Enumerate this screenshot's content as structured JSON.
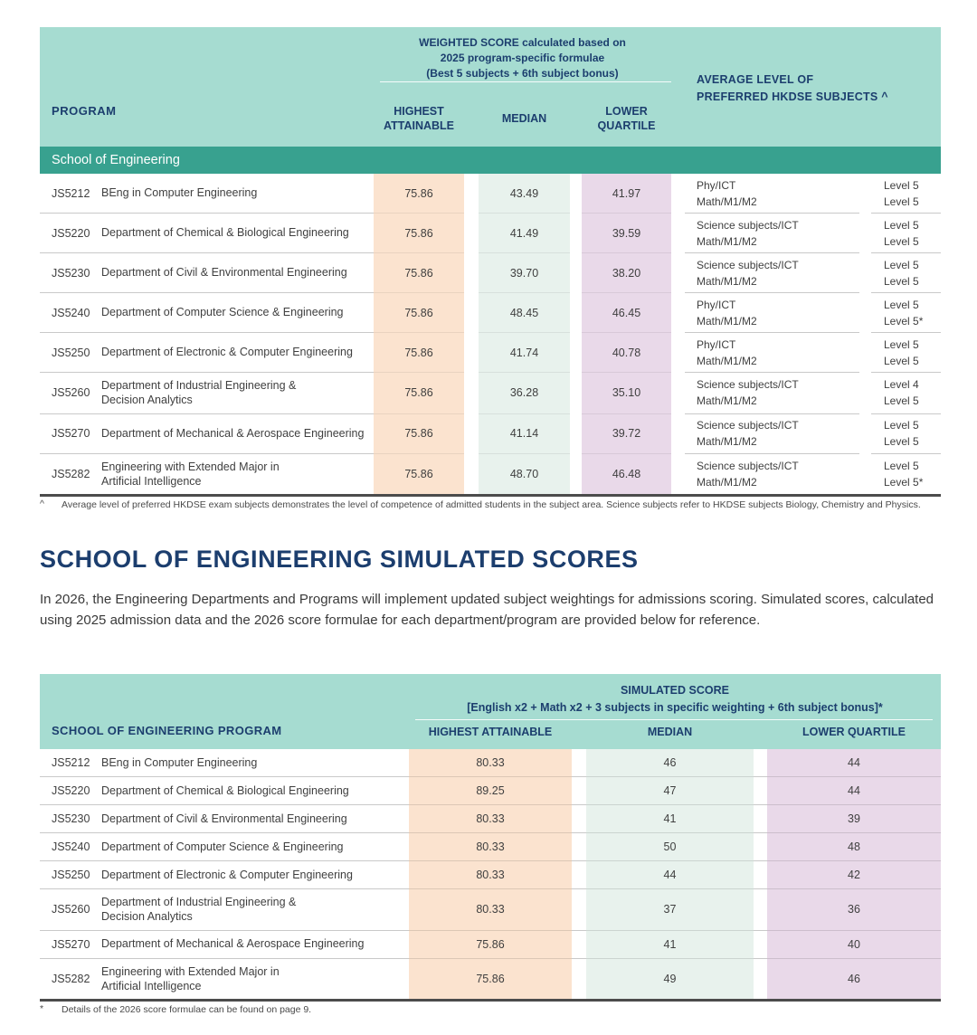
{
  "colors": {
    "header_bg": "#a6dcd1",
    "band_bg": "#38a18f",
    "navy": "#1c3e6e",
    "peach": "#fbe3cf",
    "mint": "#e8f2ed",
    "lavender": "#e9d9e9",
    "text": "#3f3f3f",
    "divider": "#c9c9c9",
    "table_bottom": "#4c4c4c"
  },
  "table1": {
    "program_header": "PROGRAM",
    "weighted_header_lines": [
      "WEIGHTED SCORE calculated based on",
      "2025 program-specific formulae",
      "(Best 5 subjects + 6th subject bonus)"
    ],
    "columns": {
      "highest_lines": [
        "HIGHEST",
        "ATTAINABLE"
      ],
      "median": "MEDIAN",
      "lower_lines": [
        "LOWER",
        "QUARTILE"
      ]
    },
    "avg_level_header_lines": [
      "AVERAGE LEVEL OF",
      "PREFERRED HKDSE SUBJECTS ^"
    ],
    "section_label": "School of Engineering",
    "rows": [
      {
        "code": "JS5212",
        "name_lines": [
          "BEng in Computer Engineering"
        ],
        "highest": "75.86",
        "median": "43.49",
        "lower": "41.97",
        "subjects": [
          "Phy/ICT",
          "Math/M1/M2"
        ],
        "levels": [
          "Level 5",
          "Level 5"
        ]
      },
      {
        "code": "JS5220",
        "name_lines": [
          "Department of Chemical & Biological Engineering"
        ],
        "highest": "75.86",
        "median": "41.49",
        "lower": "39.59",
        "subjects": [
          "Science subjects/ICT",
          "Math/M1/M2"
        ],
        "levels": [
          "Level 5",
          "Level 5"
        ]
      },
      {
        "code": "JS5230",
        "name_lines": [
          "Department of Civil & Environmental Engineering"
        ],
        "highest": "75.86",
        "median": "39.70",
        "lower": "38.20",
        "subjects": [
          "Science subjects/ICT",
          "Math/M1/M2"
        ],
        "levels": [
          "Level 5",
          "Level 5"
        ]
      },
      {
        "code": "JS5240",
        "name_lines": [
          "Department of Computer Science & Engineering"
        ],
        "highest": "75.86",
        "median": "48.45",
        "lower": "46.45",
        "subjects": [
          "Phy/ICT",
          "Math/M1/M2"
        ],
        "levels": [
          "Level 5",
          "Level 5*"
        ]
      },
      {
        "code": "JS5250",
        "name_lines": [
          "Department of Electronic & Computer Engineering"
        ],
        "highest": "75.86",
        "median": "41.74",
        "lower": "40.78",
        "subjects": [
          "Phy/ICT",
          "Math/M1/M2"
        ],
        "levels": [
          "Level 5",
          "Level 5"
        ]
      },
      {
        "code": "JS5260",
        "name_lines": [
          "Department of Industrial Engineering &",
          "Decision Analytics"
        ],
        "highest": "75.86",
        "median": "36.28",
        "lower": "35.10",
        "subjects": [
          "Science subjects/ICT",
          "Math/M1/M2"
        ],
        "levels": [
          "Level 4",
          "Level 5"
        ]
      },
      {
        "code": "JS5270",
        "name_lines": [
          "Department of Mechanical & Aerospace Engineering"
        ],
        "highest": "75.86",
        "median": "41.14",
        "lower": "39.72",
        "subjects": [
          "Science subjects/ICT",
          "Math/M1/M2"
        ],
        "levels": [
          "Level 5",
          "Level 5"
        ]
      },
      {
        "code": "JS5282",
        "name_lines": [
          "Engineering with Extended Major in",
          "Artificial Intelligence"
        ],
        "highest": "75.86",
        "median": "48.70",
        "lower": "46.48",
        "subjects": [
          "Science subjects/ICT",
          "Math/M1/M2"
        ],
        "levels": [
          "Level 5",
          "Level 5*"
        ]
      }
    ],
    "footnote_marker": "^",
    "footnote": "Average level of preferred HKDSE exam subjects demonstrates the level of competence of admitted students in the subject area. Science subjects refer to HKDSE subjects Biology, Chemistry and Physics."
  },
  "section2": {
    "heading": "SCHOOL OF ENGINEERING SIMULATED SCORES",
    "paragraph": "In 2026, the Engineering Departments and Programs will implement updated subject weightings for admissions scoring. Simulated scores, calculated using 2025 admission data and the 2026 score formulae for each department/program are provided below for reference."
  },
  "table2": {
    "program_header": "SCHOOL OF ENGINEERING PROGRAM",
    "simulated_header_lines": [
      "SIMULATED SCORE",
      "[English x2 + Math x2 + 3 subjects in specific weighting + 6th subject bonus]*"
    ],
    "columns": {
      "highest": "HIGHEST ATTAINABLE",
      "median": "MEDIAN",
      "lower": "LOWER QUARTILE"
    },
    "rows": [
      {
        "code": "JS5212",
        "name_lines": [
          "BEng in Computer Engineering"
        ],
        "highest": "80.33",
        "median": "46",
        "lower": "44"
      },
      {
        "code": "JS5220",
        "name_lines": [
          "Department of Chemical & Biological Engineering"
        ],
        "highest": "89.25",
        "median": "47",
        "lower": "44"
      },
      {
        "code": "JS5230",
        "name_lines": [
          "Department of Civil & Environmental Engineering"
        ],
        "highest": "80.33",
        "median": "41",
        "lower": "39"
      },
      {
        "code": "JS5240",
        "name_lines": [
          "Department of Computer Science & Engineering"
        ],
        "highest": "80.33",
        "median": "50",
        "lower": "48"
      },
      {
        "code": "JS5250",
        "name_lines": [
          "Department of Electronic & Computer Engineering"
        ],
        "highest": "80.33",
        "median": "44",
        "lower": "42"
      },
      {
        "code": "JS5260",
        "name_lines": [
          "Department of Industrial Engineering &",
          "Decision Analytics"
        ],
        "highest": "80.33",
        "median": "37",
        "lower": "36"
      },
      {
        "code": "JS5270",
        "name_lines": [
          "Department of Mechanical & Aerospace Engineering"
        ],
        "highest": "75.86",
        "median": "41",
        "lower": "40"
      },
      {
        "code": "JS5282",
        "name_lines": [
          "Engineering with Extended Major in",
          "Artificial Intelligence"
        ],
        "highest": "75.86",
        "median": "49",
        "lower": "46"
      }
    ],
    "footnote_marker": "*",
    "footnote": "Details of the 2026 score formulae can be found on page 9."
  }
}
